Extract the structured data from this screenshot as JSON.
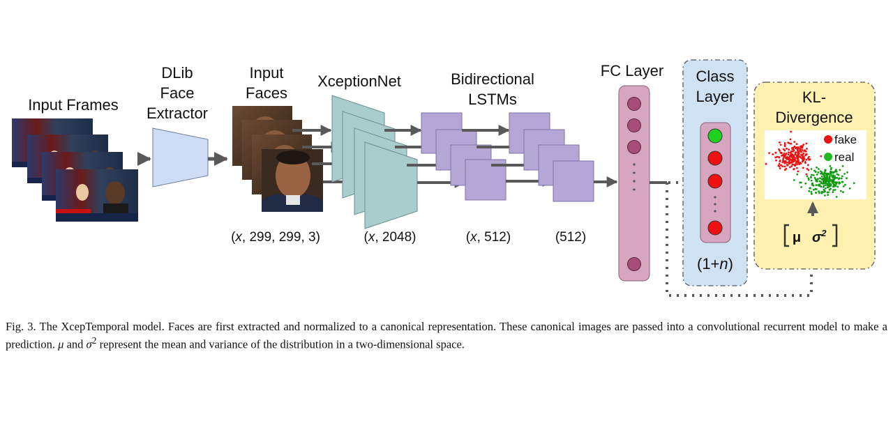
{
  "labels": {
    "input_frames": "Input Frames",
    "dlib_1": "DLib",
    "dlib_2": "Face",
    "dlib_3": "Extractor",
    "input_faces_1": "Input",
    "input_faces_2": "Faces",
    "xception": "XceptionNet",
    "bilstm_1": "Bidirectional",
    "bilstm_2": "LSTMs",
    "fc": "FC Layer",
    "class_1": "Class",
    "class_2": "Layer",
    "kl_1": "KL-",
    "kl_2": "Divergence"
  },
  "dims": {
    "faces_x": "x",
    "faces_rest": ", 299, 299, 3)",
    "xcep_x": "x",
    "xcep_rest": ", 2048)",
    "lstm_x": "x",
    "lstm_rest": ", 512)",
    "fc": "(512)",
    "class_pre": "(1+",
    "class_n": "n",
    "class_post": ")"
  },
  "legend": {
    "fake": "fake",
    "real": "real"
  },
  "stats": {
    "mu": "μ",
    "sigma": "σ",
    "sigma_exp": "2"
  },
  "colors": {
    "dlib": "#cfdcf5",
    "xception": "#a9cdcd",
    "lstm": "#b4a7d6",
    "fc": "#d5a6bd",
    "fc_dot": "#a64d79",
    "class_panel": "#cfe2f3",
    "kl_panel": "#fff2b0",
    "green": "#1fd11f",
    "red": "#ee1111",
    "arrow": "#595959"
  },
  "caption": {
    "prefix": "Fig. 3.  The XcepTemporal model. Faces are first extracted and normalized to a canonical representation. These canonical images are passed into a convolutional recurrent model to make a prediction. ",
    "mu": "μ",
    "mid": " and ",
    "sigma": "σ",
    "sup": "2",
    "suffix": " represent the mean and variance of the distribution in a two-dimensional space."
  }
}
